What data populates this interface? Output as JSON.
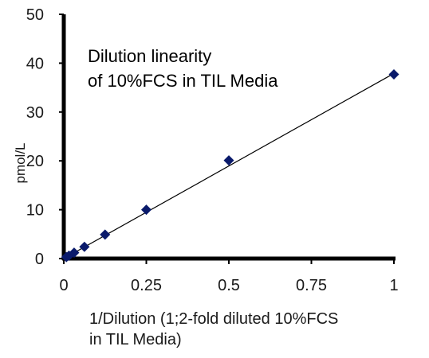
{
  "chart_data": {
    "type": "scatter",
    "title_lines": [
      "Dilution linearity",
      "of 10%FCS in TIL Media"
    ],
    "xlabel_lines": [
      "1/Dilution  (1;2-fold diluted  10%FCS",
      "in TIL Media)"
    ],
    "ylabel": "pmol/L",
    "xlim": [
      0,
      1
    ],
    "ylim": [
      0,
      50
    ],
    "x_ticks": [
      0,
      0.25,
      0.5,
      0.75,
      1
    ],
    "x_tick_labels": [
      "0",
      "0.25",
      "0.5",
      "0.75",
      "1"
    ],
    "y_ticks": [
      0,
      10,
      20,
      30,
      40,
      50
    ],
    "y_tick_labels": [
      "0",
      "10",
      "20",
      "30",
      "40",
      "50"
    ],
    "grid": false,
    "marker": "diamond",
    "colors": {
      "marker": "#0a1a6b",
      "trendline": "#000000",
      "axes": "#000000"
    },
    "points": [
      {
        "x": 0.0078125,
        "y": 0.3
      },
      {
        "x": 0.015625,
        "y": 0.6
      },
      {
        "x": 0.03125,
        "y": 1.2
      },
      {
        "x": 0.0625,
        "y": 2.4
      },
      {
        "x": 0.125,
        "y": 4.9
      },
      {
        "x": 0.25,
        "y": 10.0
      },
      {
        "x": 0.5,
        "y": 20.1
      },
      {
        "x": 1.0,
        "y": 37.7
      }
    ],
    "trendline": {
      "x": [
        0,
        1
      ],
      "y": [
        0,
        37.9
      ]
    }
  }
}
